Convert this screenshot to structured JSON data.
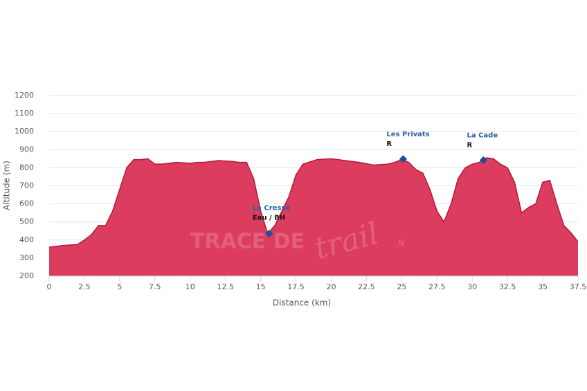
{
  "chart_data": {
    "type": "area",
    "x": [
      0,
      1,
      2,
      2.5,
      3,
      3.5,
      4,
      4.5,
      5,
      5.5,
      6,
      6.5,
      7,
      7.5,
      8,
      9,
      10,
      10.5,
      11,
      12,
      13,
      13.5,
      14,
      14.5,
      15,
      15.5,
      16,
      16.5,
      17,
      17.5,
      18,
      19,
      20,
      21,
      22,
      23,
      24,
      24.5,
      25,
      25.5,
      26,
      26.5,
      27,
      27.5,
      28,
      28.5,
      29,
      29.5,
      30,
      30.5,
      31,
      31.5,
      32,
      32.5,
      33,
      33.5,
      34,
      34.5,
      35,
      35.5,
      36,
      36.5,
      37,
      37.5
    ],
    "values": [
      360,
      370,
      375,
      400,
      430,
      480,
      480,
      560,
      680,
      800,
      845,
      845,
      850,
      820,
      820,
      830,
      825,
      830,
      830,
      840,
      835,
      830,
      830,
      740,
      560,
      435,
      480,
      560,
      640,
      760,
      820,
      845,
      850,
      840,
      830,
      815,
      820,
      830,
      845,
      830,
      790,
      770,
      680,
      560,
      500,
      600,
      740,
      800,
      820,
      830,
      855,
      850,
      820,
      800,
      720,
      550,
      580,
      600,
      720,
      730,
      600,
      480,
      440,
      390
    ],
    "color": "#dc3d5e",
    "line_color": "#b3173a",
    "xlim": [
      0,
      37.5
    ],
    "ylim": [
      200,
      1200
    ],
    "xticks": [
      0,
      2.5,
      5,
      7.5,
      10,
      12.5,
      15,
      17.5,
      20,
      22.5,
      25,
      27.5,
      30,
      32.5,
      35,
      37.5
    ],
    "yticks": [
      200,
      300,
      400,
      500,
      600,
      700,
      800,
      900,
      1000,
      1100,
      1200
    ],
    "grid": true,
    "xlabel": "Distance (km)",
    "ylabel": "Altitude (m)",
    "annotations": [
      {
        "x": 15.6,
        "y": 435,
        "label": "La Cresse",
        "sublabel": "Eau / BH"
      },
      {
        "x": 25.1,
        "y": 848,
        "label": "Les Privats",
        "sublabel": "R"
      },
      {
        "x": 30.8,
        "y": 842,
        "label": "La Cade",
        "sublabel": "R"
      }
    ],
    "watermark": [
      "TRACE DE",
      "trail",
      ".fr"
    ]
  }
}
